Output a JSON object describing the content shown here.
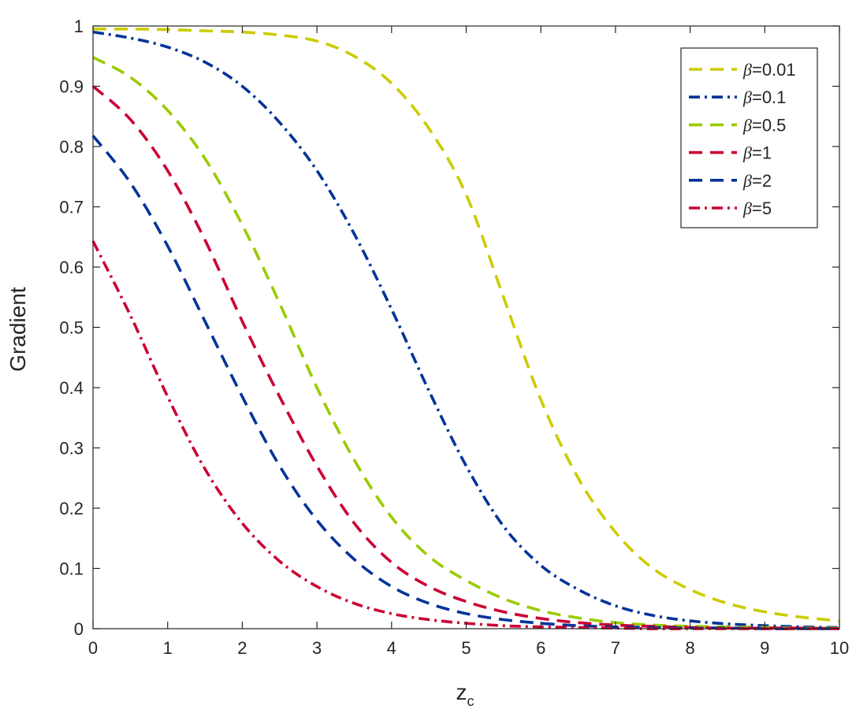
{
  "chart_data": {
    "type": "line",
    "title": "",
    "xlabel_main": "z",
    "xlabel_sub": "c",
    "ylabel": "Gradient",
    "xlim": [
      0,
      10
    ],
    "ylim": [
      0,
      1
    ],
    "xticks": [
      "0",
      "1",
      "2",
      "3",
      "4",
      "5",
      "6",
      "7",
      "8",
      "9",
      "10"
    ],
    "yticks": [
      "0",
      "0.1",
      "0.2",
      "0.3",
      "0.4",
      "0.5",
      "0.6",
      "0.7",
      "0.8",
      "0.9",
      "1"
    ],
    "grid": false,
    "legend_position": "top-right",
    "legend_symbol": "β",
    "x": [
      0,
      0.5,
      1,
      1.5,
      2,
      2.5,
      3,
      3.5,
      4,
      4.5,
      5,
      5.5,
      6,
      6.5,
      7,
      7.5,
      8,
      8.5,
      9,
      9.5,
      10
    ],
    "series": [
      {
        "name": "=0.01",
        "color": "#CCCC00",
        "dash": "dashed",
        "values": [
          0.995,
          0.995,
          0.994,
          0.992,
          0.99,
          0.985,
          0.975,
          0.95,
          0.905,
          0.83,
          0.72,
          0.55,
          0.38,
          0.25,
          0.16,
          0.1,
          0.065,
          0.042,
          0.028,
          0.019,
          0.013
        ]
      },
      {
        "name": "=0.1",
        "color": "#003399",
        "dash": "dashdot",
        "values": [
          0.99,
          0.98,
          0.965,
          0.94,
          0.9,
          0.84,
          0.76,
          0.655,
          0.53,
          0.395,
          0.27,
          0.17,
          0.105,
          0.065,
          0.038,
          0.022,
          0.013,
          0.008,
          0.005,
          0.003,
          0.002
        ]
      },
      {
        "name": "=0.5",
        "color": "#99CC00",
        "dash": "dashed",
        "values": [
          0.948,
          0.915,
          0.86,
          0.78,
          0.67,
          0.54,
          0.4,
          0.28,
          0.185,
          0.12,
          0.08,
          0.05,
          0.03,
          0.018,
          0.01,
          0.006,
          0.004,
          0.003,
          0.002,
          0.001,
          0.001
        ]
      },
      {
        "name": "=1",
        "color": "#CC0033",
        "dash": "dashed",
        "values": [
          0.9,
          0.845,
          0.76,
          0.645,
          0.51,
          0.385,
          0.27,
          0.175,
          0.11,
          0.07,
          0.045,
          0.028,
          0.017,
          0.01,
          0.006,
          0.004,
          0.002,
          0.001,
          0.001,
          0.001,
          0.0
        ]
      },
      {
        "name": "=2",
        "color": "#003399",
        "dash": "dashed",
        "values": [
          0.818,
          0.74,
          0.635,
          0.51,
          0.385,
          0.27,
          0.18,
          0.115,
          0.07,
          0.042,
          0.025,
          0.015,
          0.009,
          0.005,
          0.003,
          0.002,
          0.001,
          0.001,
          0.0,
          0.0,
          0.0
        ]
      },
      {
        "name": "=5",
        "color": "#CC0033",
        "dash": "dashdot",
        "values": [
          0.643,
          0.52,
          0.385,
          0.265,
          0.175,
          0.112,
          0.07,
          0.042,
          0.025,
          0.015,
          0.009,
          0.005,
          0.003,
          0.002,
          0.001,
          0.0,
          0.0,
          0.0,
          0.0,
          0.0,
          0.0
        ]
      }
    ]
  }
}
